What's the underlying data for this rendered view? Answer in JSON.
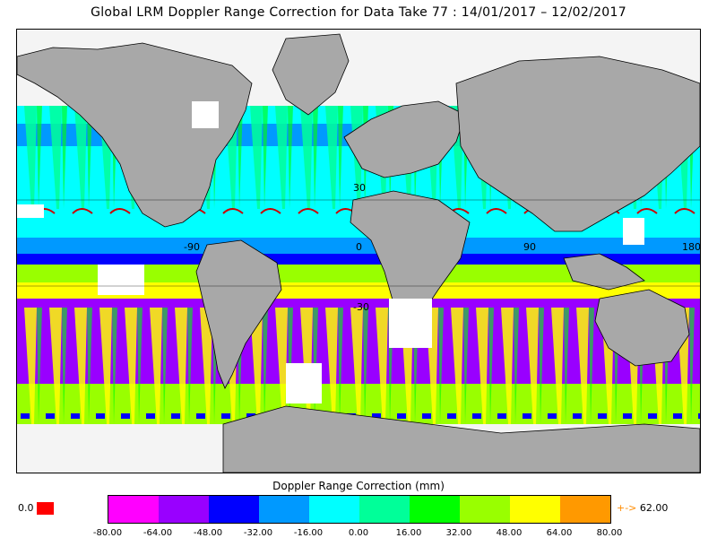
{
  "title": "Global LRM Doppler Range Correction for Data Take 77 : 14/01/2017 – 12/02/2017",
  "map": {
    "grid_labels": {
      "lon_m90": "-90",
      "lon_0": "0",
      "lon_90": "90",
      "lon_180": "180",
      "lat_30": "30",
      "lat_m30": "-30"
    },
    "colors": {
      "land": "#a8a8a8",
      "nodata": "#f4f4f4",
      "coast": "#000000",
      "spike": "#cc0000"
    }
  },
  "colorbar": {
    "title": "Doppler Range Correction (mm)",
    "ticks": [
      "-80.00",
      "-64.00",
      "-48.00",
      "-32.00",
      "-16.00",
      "0.00",
      "16.00",
      "32.00",
      "48.00",
      "64.00",
      "80.00"
    ],
    "colors": [
      "#ff00ff",
      "#9900ff",
      "#0000ff",
      "#0099ff",
      "#00ffff",
      "#00ff99",
      "#00ff00",
      "#99ff00",
      "#ffff00",
      "#ff9900"
    ],
    "zero_label": "0.0",
    "zero_color": "#ff0000",
    "overflow_arrow": "+->",
    "overflow_value": "62.00"
  }
}
